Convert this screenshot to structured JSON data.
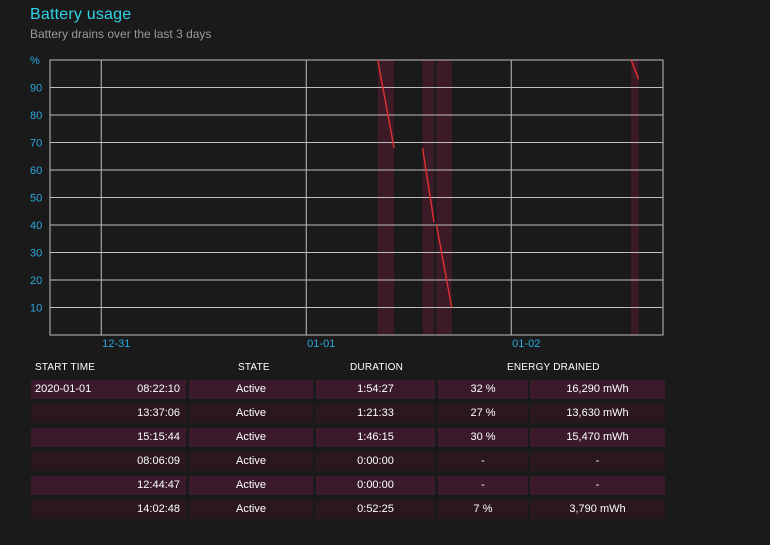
{
  "header": {
    "title": "Battery usage",
    "subtitle": "Battery drains over the last 3 days"
  },
  "chart_data": {
    "type": "line",
    "y_unit_label": "%",
    "ylim": [
      0,
      100
    ],
    "y_ticks": [
      10,
      20,
      30,
      40,
      50,
      60,
      70,
      80,
      90
    ],
    "x_tick_labels": [
      "12-31",
      "01-01",
      "01-02"
    ],
    "grid": true,
    "series_color": "#e03030",
    "highlight_color": "#3d1a28",
    "segments": [
      {
        "start": "2020-01-01 08:22",
        "end": "2020-01-01 10:17",
        "from_pct": 100,
        "to_pct": 68
      },
      {
        "start": "2020-01-01 13:37",
        "end": "2020-01-01 14:58",
        "from_pct": 68,
        "to_pct": 41
      },
      {
        "start": "2020-01-01 15:15",
        "end": "2020-01-01 17:02",
        "from_pct": 40,
        "to_pct": 10
      },
      {
        "start": "2020-01-02 14:02",
        "end": "2020-01-02 14:55",
        "from_pct": 100,
        "to_pct": 93
      }
    ]
  },
  "table": {
    "headers": {
      "start_time": "START TIME",
      "state": "STATE",
      "duration": "DURATION",
      "energy_drained": "ENERGY DRAINED"
    },
    "rows": [
      {
        "date": "2020-01-01",
        "time": "08:22:10",
        "state": "Active",
        "duration": "1:54:27",
        "percent": "32 %",
        "energy": "16,290 mWh"
      },
      {
        "date": "",
        "time": "13:37:06",
        "state": "Active",
        "duration": "1:21:33",
        "percent": "27 %",
        "energy": "13,630 mWh"
      },
      {
        "date": "",
        "time": "15:15:44",
        "state": "Active",
        "duration": "1:46:15",
        "percent": "30 %",
        "energy": "15,470 mWh"
      },
      {
        "date": "",
        "time": "08:06:09",
        "state": "Active",
        "duration": "0:00:00",
        "percent": "-",
        "energy": "-"
      },
      {
        "date": "",
        "time": "12:44:47",
        "state": "Active",
        "duration": "0:00:00",
        "percent": "-",
        "energy": "-"
      },
      {
        "date": "",
        "time": "14:02:48",
        "state": "Active",
        "duration": "0:52:25",
        "percent": "7 %",
        "energy": "3,790 mWh"
      }
    ]
  }
}
